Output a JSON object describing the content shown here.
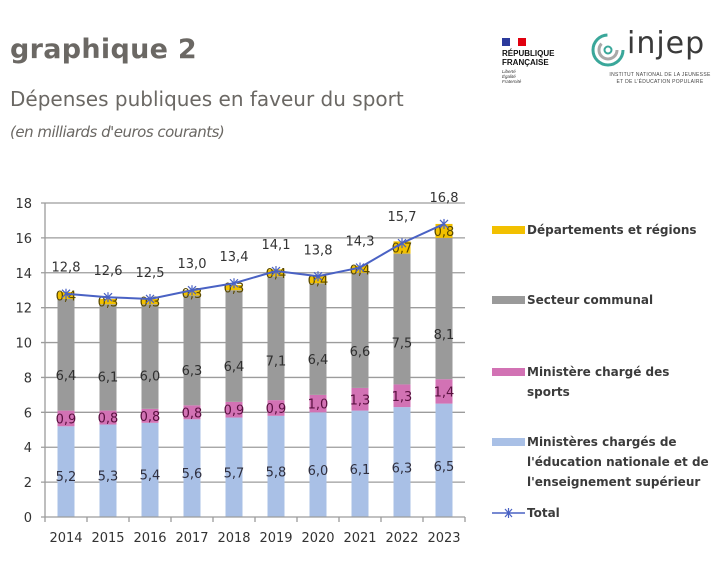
{
  "header": {
    "title": "graphique 2",
    "subtitle": "Dépenses publiques en faveur du sport",
    "unit": "(en milliards d'euros courants)"
  },
  "logos": {
    "republique": {
      "name": "RÉPUBLIQUE FRANÇAISE",
      "line1": "RÉPUBLIQUE",
      "line2": "FRANÇAISE",
      "motto": [
        "Liberté",
        "Égalité",
        "Fraternité"
      ]
    },
    "injep": {
      "name": "injep",
      "line1": "INSTITUT NATIONAL DE LA JEUNESSE",
      "line2": "ET DE L'ÉDUCATION POPULAIRE"
    }
  },
  "chart_data": {
    "type": "bar",
    "stacked": true,
    "title": "Dépenses publiques en faveur du sport",
    "subtitle": "(en milliards d'euros courants)",
    "xlabel": "",
    "ylabel": "",
    "ylim": [
      0,
      18
    ],
    "yticks": [
      0,
      2,
      4,
      6,
      8,
      10,
      12,
      14,
      16,
      18
    ],
    "ytick_labels": [
      "0",
      "2",
      "4",
      "6",
      "8",
      "10",
      "12",
      "14",
      "16",
      "18"
    ],
    "grid": true,
    "legend_position": "right",
    "categories": [
      "2014",
      "2015",
      "2016",
      "2017",
      "2018",
      "2019",
      "2020",
      "2021",
      "2022",
      "2023"
    ],
    "series": [
      {
        "name": "Ministères chargés de l'éducation nationale et de l'enseignement supérieur",
        "color": "#a9c0e6",
        "label_color": "#2f2f3f",
        "values": [
          5.2,
          5.3,
          5.4,
          5.6,
          5.7,
          5.8,
          6.0,
          6.1,
          6.3,
          6.5
        ],
        "labels": [
          "5,2",
          "5,3",
          "5,4",
          "5,6",
          "5,7",
          "5,8",
          "6,0",
          "6,1",
          "6,3",
          "6,5"
        ]
      },
      {
        "name": "Ministère chargé des sports",
        "color": "#d272b4",
        "label_color": "#5a1040",
        "values": [
          0.9,
          0.8,
          0.8,
          0.8,
          0.9,
          0.9,
          1.0,
          1.3,
          1.3,
          1.4
        ],
        "labels": [
          "0,9",
          "0,8",
          "0,8",
          "0,8",
          "0,9",
          "0,9",
          "1,0",
          "1,3",
          "1,3",
          "1,4"
        ]
      },
      {
        "name": "Secteur communal",
        "color": "#9a9a9a",
        "label_color": "#2f2f2f",
        "values": [
          6.4,
          6.1,
          6.0,
          6.3,
          6.4,
          7.1,
          6.4,
          6.6,
          7.5,
          8.1
        ],
        "labels": [
          "6,4",
          "6,1",
          "6,0",
          "6,3",
          "6,4",
          "7,1",
          "6,4",
          "6,6",
          "7,5",
          "8,1"
        ]
      },
      {
        "name": "Départements et régions",
        "color": "#f2c000",
        "label_color": "#5a4a00",
        "values": [
          0.4,
          0.3,
          0.3,
          0.3,
          0.3,
          0.4,
          0.4,
          0.4,
          0.7,
          0.8
        ],
        "labels": [
          "0,4",
          "0,3",
          "0,3",
          "0,3",
          "0,3",
          "0,4",
          "0,4",
          "0,4",
          "0,7",
          "0,8"
        ]
      }
    ],
    "total": {
      "name": "Total",
      "color": "#4a62c4",
      "values": [
        12.8,
        12.6,
        12.5,
        13.0,
        13.4,
        14.1,
        13.8,
        14.3,
        15.7,
        16.8
      ],
      "labels": [
        "12,8",
        "12,6",
        "12,5",
        "13,0",
        "13,4",
        "14,1",
        "13,8",
        "14,3",
        "15,7",
        "16,8"
      ]
    }
  },
  "legend": {
    "items": [
      {
        "label": "Départements et régions",
        "color": "#f2c000"
      },
      {
        "label": "Secteur communal",
        "color": "#9a9a9a"
      },
      {
        "label": "Ministère chargé des sports",
        "color": "#d272b4"
      },
      {
        "label": "Ministères chargés de l'éducation nationale et de l'enseignement supérieur",
        "color": "#a9c0e6"
      },
      {
        "label": "Total",
        "color": "#4a62c4"
      }
    ]
  }
}
